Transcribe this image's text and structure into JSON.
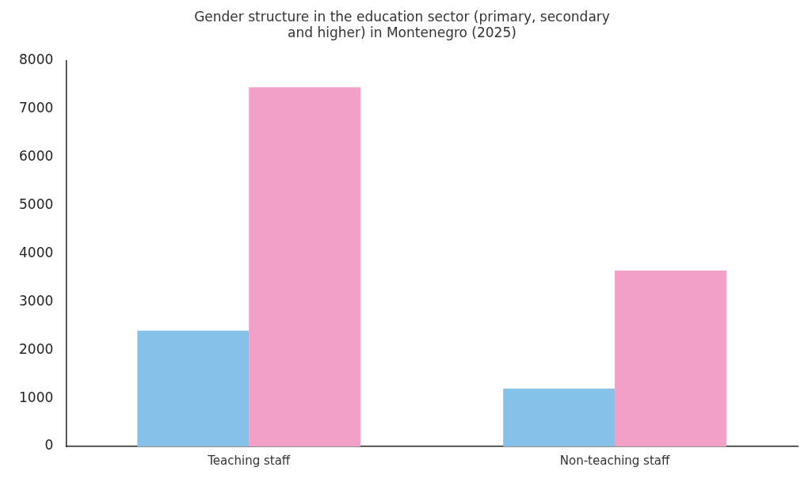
{
  "chart_data": {
    "type": "bar",
    "title": [
      "Gender structure in the education sector (primary, secondary",
      "and higher) in Montenegro (2025)"
    ],
    "categories": [
      "Teaching staff",
      "Non-teaching staff"
    ],
    "series": [
      {
        "color": "#85c1e9",
        "values": [
          2400,
          1200
        ]
      },
      {
        "color": "#f3a0c8",
        "values": [
          7450,
          3650
        ]
      }
    ],
    "ylim": [
      0,
      8000
    ],
    "yticks": [
      0,
      1000,
      2000,
      3000,
      4000,
      5000,
      6000,
      7000,
      8000
    ],
    "grid": false,
    "legend": false
  }
}
